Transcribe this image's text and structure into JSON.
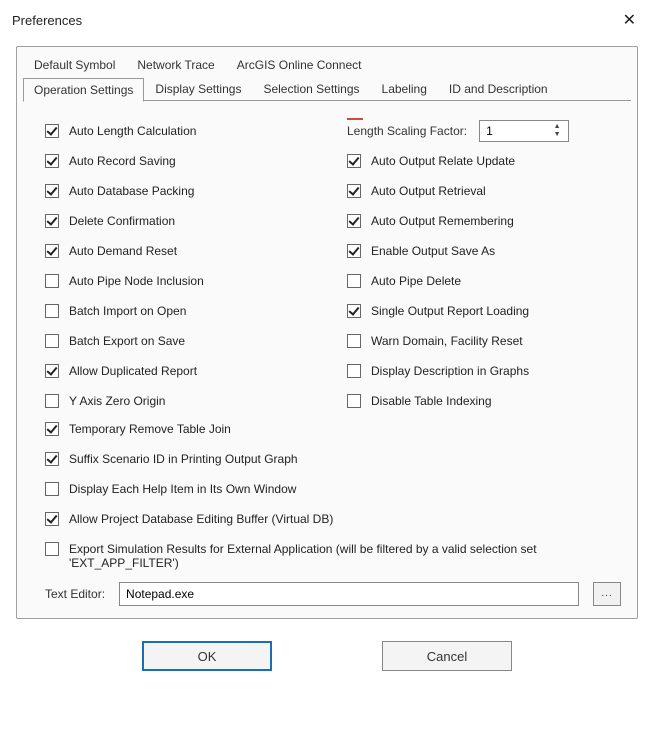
{
  "window": {
    "title": "Preferences",
    "close_glyph": "✕"
  },
  "tabs_row1": [
    {
      "id": "default-symbol",
      "label": "Default Symbol",
      "active": false
    },
    {
      "id": "network-trace",
      "label": "Network Trace",
      "active": false
    },
    {
      "id": "arcgis-online-connect",
      "label": "ArcGIS Online Connect",
      "active": false
    }
  ],
  "tabs_row2": [
    {
      "id": "operation-settings",
      "label": "Operation Settings",
      "active": true
    },
    {
      "id": "display-settings",
      "label": "Display Settings",
      "active": false
    },
    {
      "id": "selection-settings",
      "label": "Selection Settings",
      "active": false
    },
    {
      "id": "labeling",
      "label": "Labeling",
      "active": false
    },
    {
      "id": "id-and-description",
      "label": "ID and Description",
      "active": false
    }
  ],
  "left": [
    {
      "key": "auto_length_calc",
      "label": "Auto Length Calculation",
      "checked": true
    },
    {
      "key": "auto_record_saving",
      "label": "Auto Record Saving",
      "checked": true
    },
    {
      "key": "auto_database_packing",
      "label": "Auto Database Packing",
      "checked": true
    },
    {
      "key": "delete_confirmation",
      "label": "Delete Confirmation",
      "checked": true
    },
    {
      "key": "auto_demand_reset",
      "label": "Auto Demand Reset",
      "checked": true
    },
    {
      "key": "auto_pipe_node_inclusion",
      "label": "Auto Pipe Node Inclusion",
      "checked": false
    },
    {
      "key": "batch_import_on_open",
      "label": "Batch Import on Open",
      "checked": false
    },
    {
      "key": "batch_export_on_save",
      "label": "Batch Export on Save",
      "checked": false
    },
    {
      "key": "allow_duplicated_report",
      "label": "Allow Duplicated Report",
      "checked": true
    },
    {
      "key": "y_axis_zero_origin",
      "label": "Y Axis Zero Origin",
      "checked": false
    }
  ],
  "right_top": {
    "lsf_label": "Length Scaling Factor:",
    "lsf_value": "1"
  },
  "right": [
    {
      "key": "auto_output_relate_update",
      "label": "Auto Output Relate Update",
      "checked": true
    },
    {
      "key": "auto_output_retrieval",
      "label": "Auto Output Retrieval",
      "checked": true
    },
    {
      "key": "auto_output_remembering",
      "label": "Auto Output Remembering",
      "checked": true
    },
    {
      "key": "enable_output_save_as",
      "label": "Enable Output Save As",
      "checked": true
    },
    {
      "key": "auto_pipe_delete",
      "label": "Auto Pipe Delete",
      "checked": false
    },
    {
      "key": "single_output_report_loading",
      "label": "Single Output Report Loading",
      "checked": true
    },
    {
      "key": "warn_domain_facility_reset",
      "label": "Warn Domain, Facility Reset",
      "checked": false
    },
    {
      "key": "display_description_in_graphs",
      "label": "Display Description in Graphs",
      "checked": false
    },
    {
      "key": "disable_table_indexing",
      "label": "Disable Table Indexing",
      "checked": false
    }
  ],
  "full": [
    {
      "key": "temp_remove_table_join",
      "label": "Temporary Remove Table Join",
      "checked": true
    },
    {
      "key": "suffix_scenario_id",
      "label": "Suffix Scenario ID in Printing Output Graph",
      "checked": true
    },
    {
      "key": "display_each_help_item",
      "label": "Display Each Help Item in Its Own Window",
      "checked": false
    },
    {
      "key": "allow_project_db_edit_buffer",
      "label": "Allow Project Database Editing Buffer (Virtual DB)",
      "checked": true
    },
    {
      "key": "export_sim_results_ext_app",
      "label": "Export Simulation Results for External Application (will be filtered by a valid selection set 'EXT_APP_FILTER')",
      "checked": false
    }
  ],
  "text_editor": {
    "label": "Text Editor:",
    "value": "Notepad.exe",
    "browse_glyph": "..."
  },
  "buttons": {
    "ok": "OK",
    "cancel": "Cancel"
  }
}
